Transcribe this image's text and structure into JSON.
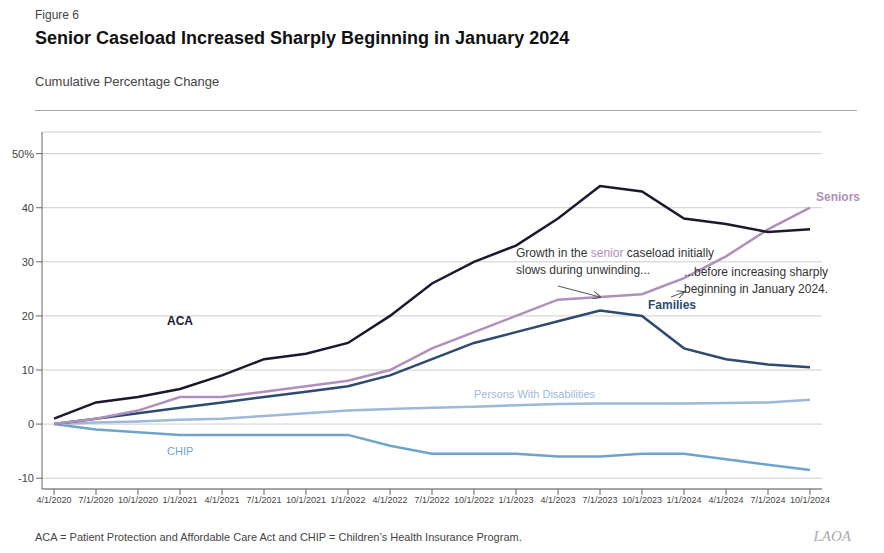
{
  "chart_data": {
    "type": "line",
    "title": "Senior Caseload Increased Sharply Beginning in January 2024",
    "subtitle": "Cumulative Percentage Change",
    "categories": [
      "4/1/2020",
      "7/1/2020",
      "10/1/2020",
      "1/1/2021",
      "4/1/2021",
      "7/1/2021",
      "10/1/2021",
      "1/1/2022",
      "4/1/2022",
      "7/1/2022",
      "10/1/2022",
      "1/1/2023",
      "4/1/2023",
      "7/1/2023",
      "10/1/2023",
      "1/1/2024",
      "4/1/2024",
      "7/1/2024",
      "10/1/2024"
    ],
    "series": [
      {
        "name": "CHIP",
        "color": "#6fa3c8",
        "values": [
          0,
          -1,
          -1.5,
          -2,
          -2,
          -2,
          -2,
          -2,
          -4,
          -5.5,
          -5.5,
          -5.5,
          -6,
          -6,
          -5.5,
          -5.5,
          -6.5,
          -7.5,
          -8.5
        ]
      },
      {
        "name": "Persons With Disabilities",
        "color": "#9db8d8",
        "values": [
          0,
          0.3,
          0.5,
          0.8,
          1,
          1.5,
          2,
          2.5,
          2.8,
          3,
          3.2,
          3.5,
          3.7,
          3.8,
          3.8,
          3.8,
          3.9,
          4,
          4.5
        ]
      },
      {
        "name": "Families",
        "color": "#2e4a6e",
        "values": [
          0,
          1,
          2,
          3,
          4,
          5,
          6,
          7,
          9,
          12,
          15,
          17,
          19,
          21,
          20,
          14,
          12,
          11,
          10.5
        ]
      },
      {
        "name": "Seniors",
        "color": "#b08fba",
        "values": [
          0,
          1,
          2.5,
          5,
          5,
          6,
          7,
          8,
          10,
          14,
          17,
          20,
          23,
          23.5,
          24,
          27,
          31,
          36,
          40
        ]
      },
      {
        "name": "ACA",
        "color": "#1a1a2e",
        "values": [
          1,
          4,
          5,
          6.5,
          9,
          12,
          13,
          15,
          20,
          26,
          30,
          33,
          38,
          44,
          43,
          38,
          37,
          35.5,
          36
        ]
      }
    ],
    "ylim": [
      -12,
      54
    ],
    "yticks": [
      -10,
      0,
      10,
      20,
      30,
      40,
      {
        "value": 50,
        "label": "50%"
      }
    ],
    "grid": true,
    "annotations": [
      {
        "text": "Figure 6"
      },
      {
        "text": [
          {
            "text": "Growth in the "
          },
          {
            "text": "senior",
            "color": "#b08fba"
          },
          {
            "text": " caseload initially\nslows during unwinding..."
          }
        ]
      },
      {
        "text": "...before increasing sharply\nbeginning in January 2024."
      },
      {
        "text": "ACA = Patient Protection and Affordable Care Act and CHIP = Children’s Health Insurance Program."
      },
      {
        "text": "LAOA"
      }
    ]
  }
}
